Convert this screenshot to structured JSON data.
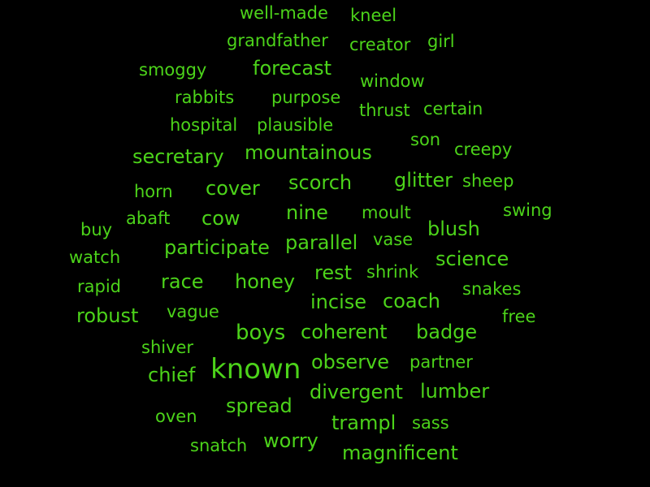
{
  "colors": {
    "background": "#000000",
    "word": "#4cd31a"
  },
  "words": [
    "well-made",
    "kneel",
    "grandfather",
    "creator",
    "girl",
    "smoggy",
    "forecast",
    "window",
    "rabbits",
    "purpose",
    "thrust",
    "certain",
    "hospital",
    "plausible",
    "son",
    "creepy",
    "secretary",
    "mountainous",
    "horn",
    "cover",
    "scorch",
    "glitter",
    "sheep",
    "buy",
    "abaft",
    "cow",
    "nine",
    "moult",
    "swing",
    "blush",
    "watch",
    "participate",
    "parallel",
    "vase",
    "science",
    "rapid",
    "race",
    "honey",
    "rest",
    "shrink",
    "snakes",
    "robust",
    "vague",
    "incise",
    "coach",
    "free",
    "boys",
    "coherent",
    "badge",
    "shiver",
    "known",
    "observe",
    "partner",
    "chief",
    "divergent",
    "lumber",
    "oven",
    "spread",
    "trampl",
    "sass",
    "snatch",
    "worry",
    "magnificent"
  ]
}
